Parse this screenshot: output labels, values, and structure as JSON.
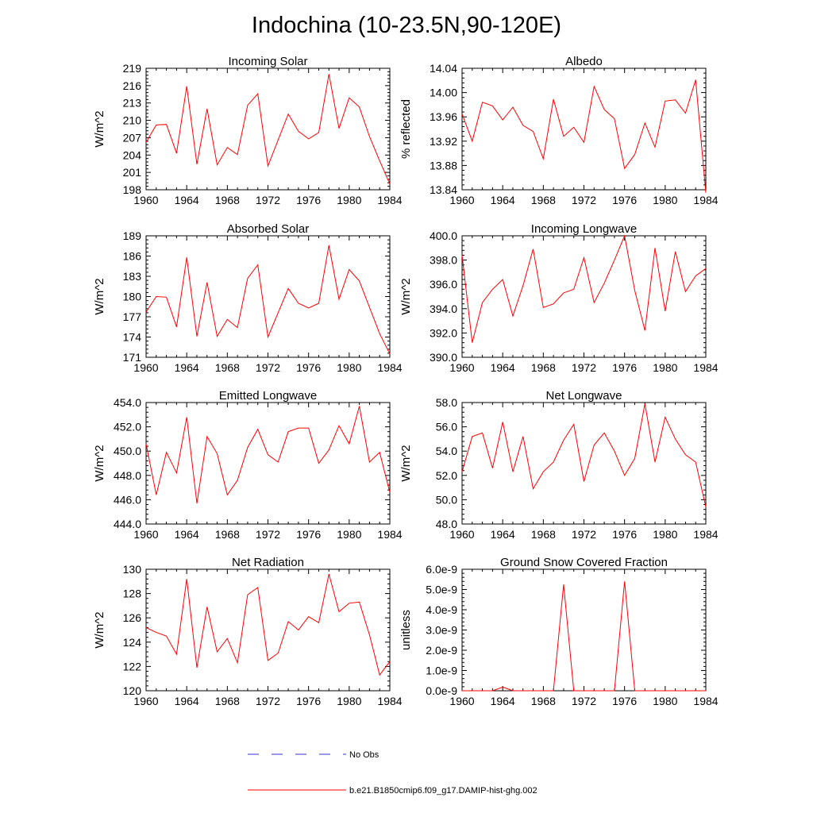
{
  "figure_title": "Indochina (10-23.5N,90-120E)",
  "legend": {
    "items": [
      {
        "label": "No Obs",
        "color": "#3333cc",
        "style": "dashed"
      },
      {
        "label": "b.e21.B1850cmip6.f09_g17.DAMIP-hist-ghg.002",
        "color": "#ff0000",
        "style": "solid"
      }
    ]
  },
  "chart_data": [
    {
      "type": "line",
      "title": "Incoming Solar",
      "ylabel": "W/m^2",
      "xlim": [
        1960,
        1984
      ],
      "ylim": [
        198,
        219
      ],
      "xticks": [
        1960,
        1964,
        1968,
        1972,
        1976,
        1980,
        1984
      ],
      "yticks": [
        198,
        201,
        204,
        207,
        210,
        213,
        216,
        219
      ],
      "ytick_labels": [
        "198",
        "201",
        "204",
        "207",
        "210",
        "213",
        "216",
        "219"
      ],
      "x": [
        1960,
        1961,
        1962,
        1963,
        1964,
        1965,
        1966,
        1967,
        1968,
        1969,
        1970,
        1971,
        1972,
        1973,
        1974,
        1975,
        1976,
        1977,
        1978,
        1979,
        1980,
        1981,
        1982,
        1983,
        1984
      ],
      "series": [
        {
          "name": "b.e21.B1850cmip6.f09_g17.DAMIP-hist-ghg.002",
          "color": "#ff0000",
          "values": [
            206.2,
            209.2,
            209.3,
            204.3,
            215.9,
            202.4,
            212.0,
            202.3,
            205.3,
            204.1,
            212.6,
            214.6,
            202.1,
            206.6,
            211.1,
            208.1,
            206.8,
            207.9,
            218.0,
            208.6,
            213.9,
            212.3,
            207.2,
            203.0,
            199.0
          ]
        }
      ]
    },
    {
      "type": "line",
      "title": "Albedo",
      "ylabel": "% reflected",
      "xlim": [
        1960,
        1984
      ],
      "ylim": [
        13.84,
        14.04
      ],
      "xticks": [
        1960,
        1964,
        1968,
        1972,
        1976,
        1980,
        1984
      ],
      "yticks": [
        13.84,
        13.88,
        13.92,
        13.96,
        14.0,
        14.04
      ],
      "ytick_labels": [
        "13.84",
        "13.88",
        "13.92",
        "13.96",
        "14.00",
        "14.04"
      ],
      "x": [
        1960,
        1961,
        1962,
        1963,
        1964,
        1965,
        1966,
        1967,
        1968,
        1969,
        1970,
        1971,
        1972,
        1973,
        1974,
        1975,
        1976,
        1977,
        1978,
        1979,
        1980,
        1981,
        1982,
        1983,
        1984
      ],
      "series": [
        {
          "name": "b.e21.B1850cmip6.f09_g17.DAMIP-hist-ghg.002",
          "color": "#ff0000",
          "values": [
            13.965,
            13.92,
            13.984,
            13.978,
            13.955,
            13.976,
            13.946,
            13.936,
            13.891,
            13.989,
            13.928,
            13.943,
            13.918,
            14.01,
            13.972,
            13.957,
            13.875,
            13.898,
            13.95,
            13.91,
            13.986,
            13.988,
            13.966,
            14.021,
            13.835
          ]
        }
      ]
    },
    {
      "type": "line",
      "title": "Absorbed Solar",
      "ylabel": "W/m^2",
      "xlim": [
        1960,
        1984
      ],
      "ylim": [
        171,
        189
      ],
      "xticks": [
        1960,
        1964,
        1968,
        1972,
        1976,
        1980,
        1984
      ],
      "yticks": [
        171,
        174,
        177,
        180,
        183,
        186,
        189
      ],
      "ytick_labels": [
        "171",
        "174",
        "177",
        "180",
        "183",
        "186",
        "189"
      ],
      "x": [
        1960,
        1961,
        1962,
        1963,
        1964,
        1965,
        1966,
        1967,
        1968,
        1969,
        1970,
        1971,
        1972,
        1973,
        1974,
        1975,
        1976,
        1977,
        1978,
        1979,
        1980,
        1981,
        1982,
        1983,
        1984
      ],
      "series": [
        {
          "name": "b.e21.B1850cmip6.f09_g17.DAMIP-hist-ghg.002",
          "color": "#ff0000",
          "values": [
            177.7,
            180.0,
            179.9,
            175.5,
            185.8,
            174.1,
            182.1,
            174.1,
            176.6,
            175.4,
            182.7,
            184.7,
            174.0,
            177.6,
            181.2,
            179.0,
            178.3,
            179.0,
            187.6,
            179.6,
            184.0,
            182.3,
            178.4,
            174.5,
            171.5
          ]
        }
      ]
    },
    {
      "type": "line",
      "title": "Incoming Longwave",
      "ylabel": "W/m^2",
      "xlim": [
        1960,
        1984
      ],
      "ylim": [
        390,
        400
      ],
      "xticks": [
        1960,
        1964,
        1968,
        1972,
        1976,
        1980,
        1984
      ],
      "yticks": [
        390,
        392,
        394,
        396,
        398,
        400
      ],
      "ytick_labels": [
        "390.0",
        "392.0",
        "394.0",
        "396.0",
        "398.0",
        "400.0"
      ],
      "x": [
        1960,
        1961,
        1962,
        1963,
        1964,
        1965,
        1966,
        1967,
        1968,
        1969,
        1970,
        1971,
        1972,
        1973,
        1974,
        1975,
        1976,
        1977,
        1978,
        1979,
        1980,
        1981,
        1982,
        1983,
        1984
      ],
      "series": [
        {
          "name": "b.e21.B1850cmip6.f09_g17.DAMIP-hist-ghg.002",
          "color": "#ff0000",
          "values": [
            398.4,
            391.2,
            394.5,
            395.6,
            396.4,
            393.4,
            395.9,
            398.9,
            394.1,
            394.4,
            395.3,
            395.6,
            398.2,
            394.5,
            396.1,
            398.0,
            400.0,
            395.5,
            392.2,
            399.0,
            393.8,
            398.7,
            395.4,
            396.7,
            397.3
          ]
        }
      ]
    },
    {
      "type": "line",
      "title": "Emitted Longwave",
      "ylabel": "W/m^2",
      "xlim": [
        1960,
        1984
      ],
      "ylim": [
        444,
        454
      ],
      "xticks": [
        1960,
        1964,
        1968,
        1972,
        1976,
        1980,
        1984
      ],
      "yticks": [
        444,
        446,
        448,
        450,
        452,
        454
      ],
      "ytick_labels": [
        "444.0",
        "446.0",
        "448.0",
        "450.0",
        "452.0",
        "454.0"
      ],
      "x": [
        1960,
        1961,
        1962,
        1963,
        1964,
        1965,
        1966,
        1967,
        1968,
        1969,
        1970,
        1971,
        1972,
        1973,
        1974,
        1975,
        1976,
        1977,
        1978,
        1979,
        1980,
        1981,
        1982,
        1983,
        1984
      ],
      "series": [
        {
          "name": "b.e21.B1850cmip6.f09_g17.DAMIP-hist-ghg.002",
          "color": "#ff0000",
          "values": [
            450.6,
            446.4,
            449.9,
            448.2,
            452.8,
            445.7,
            451.2,
            449.8,
            446.4,
            447.6,
            450.3,
            451.8,
            449.7,
            449.1,
            451.6,
            451.9,
            451.9,
            449.0,
            450.1,
            452.1,
            450.6,
            453.7,
            449.1,
            449.9,
            446.6
          ]
        }
      ]
    },
    {
      "type": "line",
      "title": "Net Longwave",
      "ylabel": "W/m^2",
      "xlim": [
        1960,
        1984
      ],
      "ylim": [
        48,
        58
      ],
      "xticks": [
        1960,
        1964,
        1968,
        1972,
        1976,
        1980,
        1984
      ],
      "yticks": [
        48,
        50,
        52,
        54,
        56,
        58
      ],
      "ytick_labels": [
        "48.0",
        "50.0",
        "52.0",
        "54.0",
        "56.0",
        "58.0"
      ],
      "x": [
        1960,
        1961,
        1962,
        1963,
        1964,
        1965,
        1966,
        1967,
        1968,
        1969,
        1970,
        1971,
        1972,
        1973,
        1974,
        1975,
        1976,
        1977,
        1978,
        1979,
        1980,
        1981,
        1982,
        1983,
        1984
      ],
      "series": [
        {
          "name": "b.e21.B1850cmip6.f09_g17.DAMIP-hist-ghg.002",
          "color": "#ff0000",
          "values": [
            52.3,
            55.2,
            55.5,
            52.6,
            56.4,
            52.3,
            55.2,
            50.9,
            52.3,
            53.1,
            54.9,
            56.2,
            51.5,
            54.5,
            55.5,
            54.0,
            52.0,
            53.4,
            57.9,
            53.1,
            56.8,
            55.0,
            53.7,
            53.1,
            49.4
          ]
        }
      ]
    },
    {
      "type": "line",
      "title": "Net Radiation",
      "ylabel": "W/m^2",
      "xlim": [
        1960,
        1984
      ],
      "ylim": [
        120,
        130
      ],
      "xticks": [
        1960,
        1964,
        1968,
        1972,
        1976,
        1980,
        1984
      ],
      "yticks": [
        120,
        122,
        124,
        126,
        128,
        130
      ],
      "ytick_labels": [
        "120",
        "122",
        "124",
        "126",
        "128",
        "130"
      ],
      "x": [
        1960,
        1961,
        1962,
        1963,
        1964,
        1965,
        1966,
        1967,
        1968,
        1969,
        1970,
        1971,
        1972,
        1973,
        1974,
        1975,
        1976,
        1977,
        1978,
        1979,
        1980,
        1981,
        1982,
        1983,
        1984
      ],
      "series": [
        {
          "name": "b.e21.B1850cmip6.f09_g17.DAMIP-hist-ghg.002",
          "color": "#ff0000",
          "values": [
            125.2,
            124.8,
            124.5,
            123.0,
            129.2,
            121.9,
            126.9,
            123.2,
            124.3,
            122.3,
            127.9,
            128.5,
            122.5,
            123.1,
            125.7,
            125.0,
            126.1,
            125.6,
            129.6,
            126.5,
            127.2,
            127.3,
            124.6,
            121.3,
            122.4
          ]
        }
      ]
    },
    {
      "type": "line",
      "title": "Ground Snow Covered Fraction",
      "ylabel": "unitless",
      "xlim": [
        1960,
        1984
      ],
      "ylim": [
        0,
        6e-09
      ],
      "xticks": [
        1960,
        1964,
        1968,
        1972,
        1976,
        1980,
        1984
      ],
      "yticks": [
        0,
        1e-09,
        2e-09,
        3e-09,
        4e-09,
        5e-09,
        6e-09
      ],
      "ytick_labels": [
        "0.0e-9",
        "1.0e-9",
        "2.0e-9",
        "3.0e-9",
        "4.0e-9",
        "5.0e-9",
        "6.0e-9"
      ],
      "x": [
        1960,
        1961,
        1962,
        1963,
        1964,
        1965,
        1966,
        1967,
        1968,
        1969,
        1970,
        1971,
        1972,
        1973,
        1974,
        1975,
        1976,
        1977,
        1978,
        1979,
        1980,
        1981,
        1982,
        1983,
        1984
      ],
      "series": [
        {
          "name": "b.e21.B1850cmip6.f09_g17.DAMIP-hist-ghg.002",
          "color": "#ff0000",
          "values": [
            0,
            0,
            0,
            0,
            1.8e-10,
            0,
            0,
            0,
            0,
            0,
            5.25e-09,
            0,
            0,
            0,
            0,
            0,
            5.4e-09,
            0,
            0,
            0,
            0,
            0,
            0,
            0,
            0
          ]
        }
      ]
    }
  ]
}
